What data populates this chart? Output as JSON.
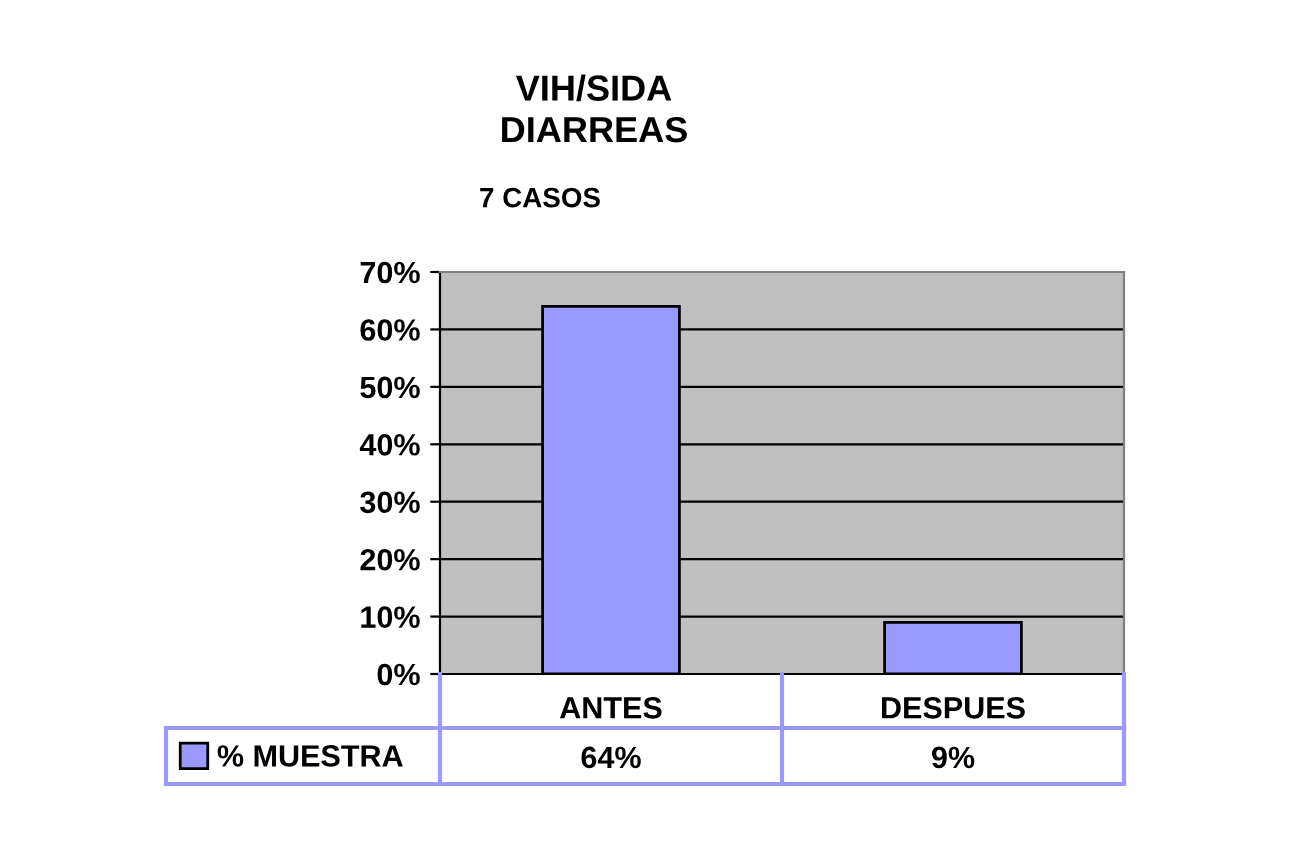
{
  "chart_data": {
    "type": "bar",
    "title": "VIH/SIDA\nDIARREAS",
    "subtitle": "7 CASOS",
    "categories": [
      "ANTES",
      "DESPUES"
    ],
    "series": [
      {
        "name": "% MUESTRA",
        "color": "#9999ff",
        "values": [
          64,
          9
        ],
        "value_labels": [
          "64%",
          "9%"
        ]
      }
    ],
    "ylim": [
      0,
      70
    ],
    "yticks": [
      {
        "value": 0,
        "label": "0%"
      },
      {
        "value": 10,
        "label": "10%"
      },
      {
        "value": 20,
        "label": "20%"
      },
      {
        "value": 30,
        "label": "30%"
      },
      {
        "value": 40,
        "label": "40%"
      },
      {
        "value": 50,
        "label": "50%"
      },
      {
        "value": 60,
        "label": "60%"
      },
      {
        "value": 70,
        "label": "70%"
      }
    ],
    "grid": "y",
    "legend": "bottom left"
  }
}
